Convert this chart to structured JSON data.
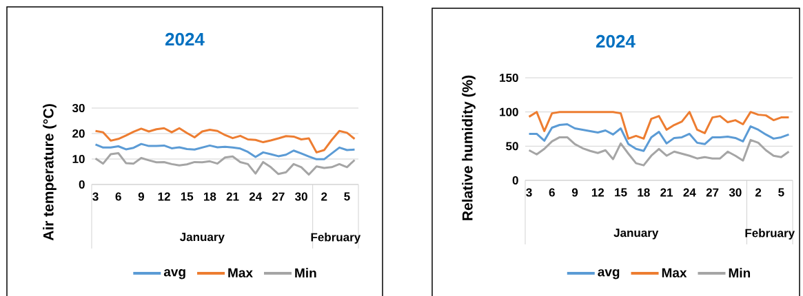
{
  "chart_data": [
    {
      "type": "line",
      "title": "2024",
      "ylabel": "Air temperature (°C)",
      "categories": [
        "3",
        null,
        null,
        "6",
        null,
        null,
        "9",
        null,
        null,
        "12",
        null,
        null,
        "15",
        null,
        null,
        "18",
        null,
        null,
        "21",
        null,
        null,
        "24",
        null,
        null,
        "27",
        null,
        null,
        "30",
        null,
        null,
        "2",
        null,
        null,
        "5",
        null
      ],
      "series": [
        {
          "name": "avg",
          "color": "#5b9bd5",
          "values": [
            15.7,
            14.5,
            14.5,
            15.0,
            13.8,
            14.4,
            15.9,
            15.1,
            15.1,
            15.3,
            14.2,
            14.6,
            13.9,
            13.7,
            14.5,
            15.3,
            14.6,
            14.8,
            14.5,
            14.1,
            12.8,
            10.8,
            12.6,
            11.9,
            11.1,
            11.7,
            13.3,
            12.2,
            11.0,
            9.9,
            9.9,
            12.2,
            14.5,
            13.5,
            13.7
          ]
        },
        {
          "name": "Max",
          "color": "#ed7d31",
          "values": [
            21.0,
            20.5,
            17.2,
            17.9,
            19.2,
            20.7,
            21.9,
            20.8,
            21.7,
            22.1,
            20.5,
            22.1,
            20.2,
            18.5,
            20.8,
            21.5,
            21.0,
            19.4,
            18.2,
            19.1,
            17.7,
            17.5,
            16.6,
            17.3,
            18.1,
            19.0,
            18.8,
            17.7,
            18.1,
            12.6,
            13.5,
            17.5,
            21.0,
            20.3,
            17.9
          ]
        },
        {
          "name": "Min",
          "color": "#a5a5a5",
          "values": [
            10.2,
            8.2,
            11.9,
            12.3,
            8.4,
            8.2,
            10.4,
            9.5,
            8.7,
            8.8,
            8.0,
            7.5,
            7.9,
            8.8,
            8.7,
            9.1,
            8.2,
            10.6,
            11.0,
            8.8,
            8.0,
            4.3,
            8.8,
            6.8,
            4.1,
            4.8,
            8.0,
            6.8,
            3.9,
            7.1,
            6.5,
            6.8,
            8.0,
            6.8,
            9.6
          ]
        }
      ],
      "ylim": [
        0,
        30
      ],
      "yticks": [
        0,
        10,
        20,
        30
      ],
      "grid": "y",
      "legend": "bottom",
      "annotations": [
        "January",
        "February"
      ]
    },
    {
      "type": "line",
      "title": "2024",
      "ylabel": "Relative humidity (%)",
      "categories": [
        "3",
        null,
        null,
        "6",
        null,
        null,
        "9",
        null,
        null,
        "12",
        null,
        null,
        "15",
        null,
        null,
        "18",
        null,
        null,
        "21",
        null,
        null,
        "24",
        null,
        null,
        "27",
        null,
        null,
        "30",
        null,
        null,
        "2",
        null,
        null,
        "5",
        null
      ],
      "series": [
        {
          "name": "avg",
          "color": "#5b9bd5",
          "values": [
            68,
            68,
            58,
            77,
            81,
            82,
            76,
            74,
            72,
            70,
            73,
            67,
            76,
            53,
            46,
            43,
            63,
            71,
            54,
            62,
            63,
            68,
            55,
            53,
            63,
            63,
            64,
            62,
            57,
            79,
            74,
            67,
            61,
            63,
            67
          ]
        },
        {
          "name": "Max",
          "color": "#ed7d31",
          "values": [
            93,
            100,
            72,
            98,
            100,
            100,
            100,
            100,
            100,
            100,
            100,
            100,
            98,
            61,
            65,
            61,
            90,
            94,
            74,
            81,
            86,
            100,
            74,
            69,
            92,
            94,
            85,
            88,
            82,
            100,
            96,
            95,
            88,
            92,
            92
          ]
        },
        {
          "name": "Min",
          "color": "#a5a5a5",
          "values": [
            44,
            38,
            46,
            57,
            63,
            63,
            53,
            47,
            43,
            40,
            44,
            31,
            54,
            39,
            25,
            22,
            36,
            46,
            36,
            42,
            39,
            36,
            32,
            34,
            32,
            32,
            42,
            36,
            29,
            59,
            55,
            44,
            36,
            34,
            42
          ]
        }
      ],
      "ylim": [
        0,
        150
      ],
      "yticks": [
        0,
        50,
        100,
        150
      ],
      "grid": "y",
      "legend": "bottom",
      "annotations": [
        "January",
        "February"
      ]
    }
  ]
}
